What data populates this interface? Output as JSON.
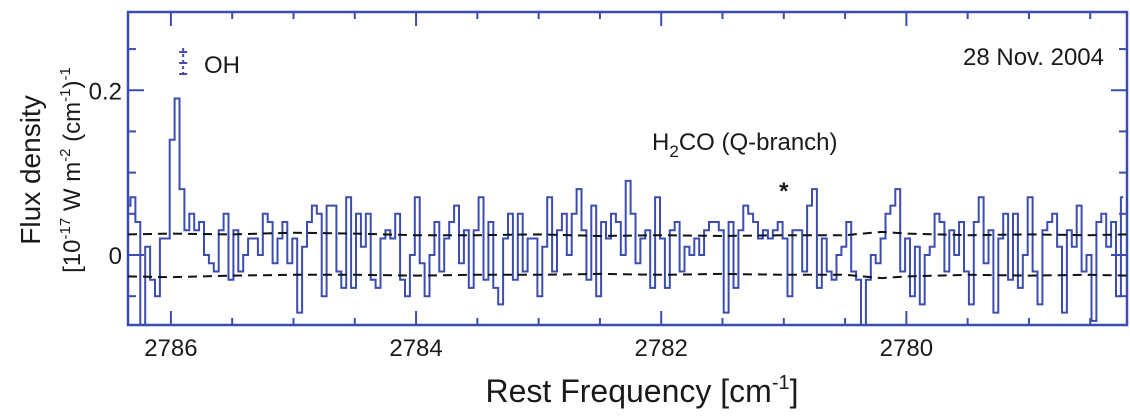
{
  "chart_data": {
    "type": "line",
    "drawstyle": "steps-mid",
    "title": "",
    "date_label": "28 Nov. 2004",
    "xlabel": {
      "main": "Rest Frequency [cm",
      "sup": "-1",
      "close": "]"
    },
    "ylabel": {
      "line1": "Flux density",
      "line2_a": "[10",
      "line2_sup1": "-17",
      "line2_b": " W m",
      "line2_sup2": "-2",
      "line2_c": " (cm",
      "line2_sup3": "-1",
      "line2_d": ")",
      "line2_sup4": "-1"
    },
    "xlim": [
      2786.35,
      2778.2
    ],
    "ylim": [
      -0.085,
      0.295
    ],
    "x_reversed": true,
    "x_ticks": [
      2786,
      2784,
      2782,
      2780
    ],
    "x_tick_labels": [
      "2786",
      "2784",
      "2782",
      "2780"
    ],
    "y_ticks": [
      0,
      0.2
    ],
    "y_tick_labels": [
      "0",
      "0.2"
    ],
    "grid": false,
    "colors": {
      "frame": "#3b4db0",
      "spectrum": "#3b4db0",
      "noise": "#111111",
      "oh_marker": "#4a4aa8"
    },
    "annotations": {
      "oh_label": "OH",
      "oh_x": 2785.9,
      "h2co_label": {
        "h": "H",
        "sub": "2",
        "rest": "CO (Q-branch)"
      },
      "h2co_marker": "*",
      "h2co_x": 2781.0
    },
    "series": [
      {
        "style": "steps",
        "x": [
          2786.35,
          2786.31,
          2786.27,
          2786.23,
          2786.19,
          2786.15,
          2786.11,
          2786.07,
          2786.03,
          2785.99,
          2785.95,
          2785.91,
          2785.87,
          2785.83,
          2785.79,
          2785.75,
          2785.71,
          2785.67,
          2785.63,
          2785.59,
          2785.55,
          2785.51,
          2785.47,
          2785.43,
          2785.39,
          2785.35,
          2785.31,
          2785.27,
          2785.23,
          2785.19,
          2785.15,
          2785.11,
          2785.07,
          2785.03,
          2784.99,
          2784.95,
          2784.91,
          2784.87,
          2784.83,
          2784.79,
          2784.75,
          2784.71,
          2784.67,
          2784.63,
          2784.59,
          2784.55,
          2784.51,
          2784.47,
          2784.43,
          2784.39,
          2784.35,
          2784.31,
          2784.27,
          2784.23,
          2784.19,
          2784.15,
          2784.11,
          2784.07,
          2784.03,
          2783.99,
          2783.95,
          2783.91,
          2783.87,
          2783.83,
          2783.79,
          2783.75,
          2783.71,
          2783.67,
          2783.63,
          2783.59,
          2783.55,
          2783.51,
          2783.47,
          2783.43,
          2783.39,
          2783.35,
          2783.31,
          2783.27,
          2783.23,
          2783.19,
          2783.15,
          2783.11,
          2783.07,
          2783.03,
          2782.99,
          2782.95,
          2782.91,
          2782.87,
          2782.83,
          2782.79,
          2782.75,
          2782.71,
          2782.67,
          2782.63,
          2782.59,
          2782.55,
          2782.51,
          2782.47,
          2782.43,
          2782.39,
          2782.35,
          2782.31,
          2782.27,
          2782.23,
          2782.19,
          2782.15,
          2782.11,
          2782.07,
          2782.03,
          2781.99,
          2781.95,
          2781.91,
          2781.87,
          2781.83,
          2781.79,
          2781.75,
          2781.71,
          2781.67,
          2781.63,
          2781.59,
          2781.55,
          2781.51,
          2781.47,
          2781.43,
          2781.39,
          2781.35,
          2781.31,
          2781.27,
          2781.23,
          2781.19,
          2781.15,
          2781.11,
          2781.07,
          2781.03,
          2780.99,
          2780.95,
          2780.91,
          2780.87,
          2780.83,
          2780.79,
          2780.75,
          2780.71,
          2780.67,
          2780.63,
          2780.59,
          2780.55,
          2780.51,
          2780.47,
          2780.43,
          2780.39,
          2780.35,
          2780.31,
          2780.27,
          2780.23,
          2780.19,
          2780.15,
          2780.11,
          2780.07,
          2780.03,
          2779.99,
          2779.95,
          2779.91,
          2779.87,
          2779.83,
          2779.79,
          2779.75,
          2779.71,
          2779.67,
          2779.63,
          2779.59,
          2779.55,
          2779.51,
          2779.47,
          2779.43,
          2779.39,
          2779.35,
          2779.31,
          2779.27,
          2779.23,
          2779.19,
          2779.15,
          2779.11,
          2779.07,
          2779.03,
          2778.99,
          2778.95,
          2778.91,
          2778.87,
          2778.83,
          2778.79,
          2778.75,
          2778.71,
          2778.67,
          2778.63,
          2778.59,
          2778.55,
          2778.51,
          2778.47,
          2778.43,
          2778.39,
          2778.35,
          2778.31,
          2778.27,
          2778.23
        ],
        "values": [
          0.06,
          0.07,
          0.04,
          -0.09,
          0.01,
          -0.03,
          -0.05,
          0.02,
          0.02,
          0.14,
          0.19,
          0.08,
          0.03,
          0.05,
          0.03,
          0.04,
          0.0,
          -0.01,
          -0.02,
          0.03,
          0.05,
          -0.03,
          0.03,
          -0.02,
          0.0,
          0.02,
          0.02,
          0.0,
          0.05,
          0.04,
          -0.01,
          0.02,
          0.04,
          -0.01,
          0.02,
          -0.07,
          0.01,
          0.04,
          0.06,
          0.05,
          -0.05,
          0.06,
          0.06,
          -0.02,
          -0.04,
          0.07,
          -0.04,
          0.05,
          0.01,
          0.05,
          -0.03,
          -0.04,
          0.02,
          0.03,
          0.02,
          0.05,
          -0.03,
          -0.05,
          0.0,
          0.07,
          -0.01,
          -0.05,
          0.0,
          0.04,
          -0.02,
          0.02,
          0.04,
          0.06,
          -0.01,
          0.03,
          -0.04,
          0.03,
          0.07,
          -0.03,
          0.04,
          -0.04,
          -0.06,
          0.02,
          0.05,
          -0.03,
          0.05,
          -0.02,
          0.02,
          0.02,
          -0.05,
          0.01,
          0.07,
          -0.02,
          0.03,
          0.05,
          0.0,
          0.05,
          0.08,
          0.03,
          -0.03,
          0.06,
          -0.05,
          0.04,
          0.02,
          0.05,
          0.04,
          0.0,
          0.09,
          0.05,
          -0.01,
          0.02,
          0.03,
          -0.04,
          0.07,
          0.02,
          -0.04,
          0.03,
          0.04,
          -0.02,
          0.01,
          0.0,
          0.02,
          0.0,
          0.03,
          0.04,
          0.04,
          0.03,
          -0.07,
          0.04,
          -0.04,
          0.03,
          0.06,
          0.05,
          0.04,
          0.02,
          0.03,
          0.02,
          0.03,
          0.04,
          0.02,
          -0.05,
          0.03,
          0.03,
          -0.02,
          0.06,
          0.08,
          -0.04,
          0.02,
          -0.02,
          -0.03,
          0.0,
          0.01,
          0.04,
          -0.02,
          -0.03,
          -0.09,
          -0.03,
          0.0,
          -0.01,
          0.02,
          0.05,
          0.06,
          0.08,
          -0.02,
          0.02,
          -0.05,
          0.01,
          -0.06,
          0.0,
          0.01,
          0.05,
          0.04,
          -0.02,
          0.03,
          0.0,
          0.04,
          -0.02,
          -0.06,
          0.04,
          0.07,
          -0.01,
          0.03,
          -0.07,
          0.02,
          0.05,
          -0.03,
          0.05,
          -0.04,
          0.0,
          0.07,
          -0.02,
          -0.06,
          0.03,
          0.04,
          0.05,
          0.01,
          -0.07,
          0.03,
          0.01,
          0.06,
          -0.02,
          0.0,
          -0.08,
          0.04,
          0.05,
          0.01,
          0.04,
          -0.05,
          0.07
        ]
      },
      {
        "style": "dashed",
        "x": [
          2786.35,
          2786.0,
          2785.5,
          2785.0,
          2784.5,
          2784.0,
          2783.5,
          2783.0,
          2782.5,
          2782.0,
          2781.5,
          2781.0,
          2780.5,
          2780.2,
          2780.0,
          2779.5,
          2779.0,
          2778.5,
          2778.2
        ],
        "values": [
          0.025,
          0.026,
          0.025,
          0.027,
          0.026,
          0.024,
          0.024,
          0.025,
          0.023,
          0.024,
          0.023,
          0.024,
          0.024,
          0.028,
          0.026,
          0.024,
          0.025,
          0.024,
          0.025
        ]
      },
      {
        "style": "dashed",
        "x": [
          2786.35,
          2786.0,
          2785.5,
          2785.0,
          2784.5,
          2784.0,
          2783.5,
          2783.0,
          2782.5,
          2782.0,
          2781.5,
          2781.0,
          2780.5,
          2780.2,
          2780.0,
          2779.5,
          2779.0,
          2778.5,
          2778.2
        ],
        "values": [
          -0.026,
          -0.027,
          -0.025,
          -0.024,
          -0.024,
          -0.025,
          -0.024,
          -0.024,
          -0.023,
          -0.024,
          -0.023,
          -0.024,
          -0.024,
          -0.028,
          -0.026,
          -0.024,
          -0.025,
          -0.024,
          -0.025
        ]
      }
    ]
  }
}
